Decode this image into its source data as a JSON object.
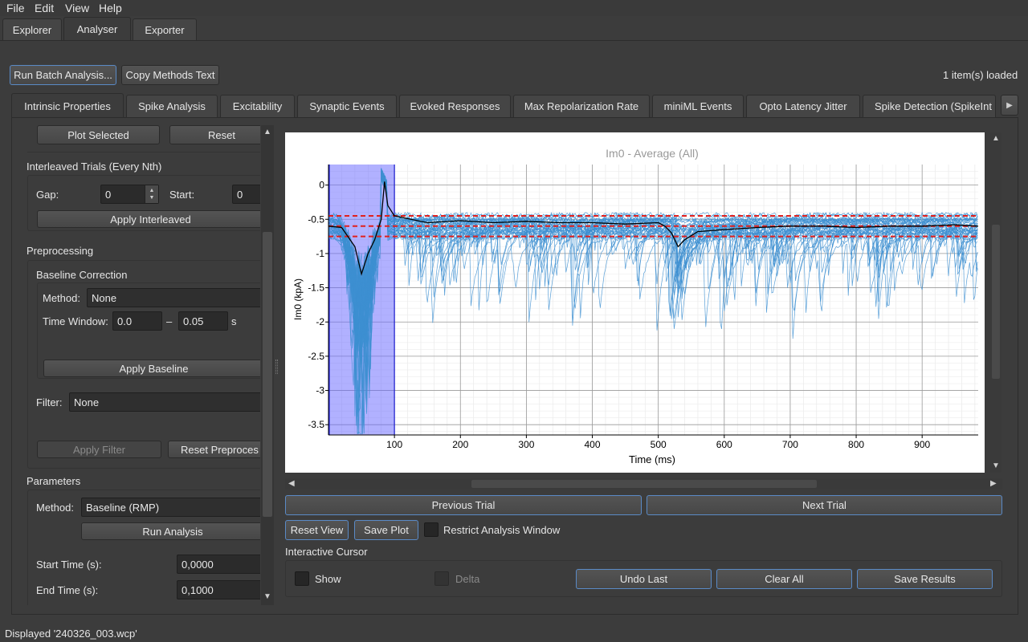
{
  "menu": {
    "items": [
      {
        "label": "File"
      },
      {
        "label": "Edit"
      },
      {
        "label": "View"
      },
      {
        "label": "Help"
      }
    ]
  },
  "top_tabs": [
    {
      "label": "Explorer",
      "active": false
    },
    {
      "label": "Analyser",
      "active": true
    },
    {
      "label": "Exporter",
      "active": false
    }
  ],
  "toolbar": {
    "run_batch_label": "Run Batch Analysis...",
    "copy_methods_label": "Copy Methods Text",
    "items_loaded": "1 item(s) loaded"
  },
  "analysis_tabs": [
    {
      "label": "Intrinsic Properties",
      "active": true
    },
    {
      "label": "Spike Analysis"
    },
    {
      "label": "Excitability"
    },
    {
      "label": "Synaptic Events"
    },
    {
      "label": "Evoked Responses"
    },
    {
      "label": "Max Repolarization Rate"
    },
    {
      "label": "miniML Events"
    },
    {
      "label": "Opto Latency Jitter"
    },
    {
      "label": "Spike Detection (SpikeInt"
    }
  ],
  "left_panel": {
    "plot_selected_label": "Plot Selected",
    "reset_label": "Reset",
    "interleaved_title": "Interleaved Trials (Every Nth)",
    "gap_label": "Gap:",
    "gap_value": "0",
    "start_label": "Start:",
    "start_value": "0",
    "apply_interleaved_label": "Apply Interleaved",
    "preprocessing_title": "Preprocessing",
    "baseline_title": "Baseline Correction",
    "method_label": "Method:",
    "method_value": "None",
    "time_window_label": "Time Window:",
    "tw_start": "0.0",
    "tw_dash": "–",
    "tw_end": "0.05",
    "tw_unit": "s",
    "apply_baseline_label": "Apply Baseline",
    "filter_label": "Filter:",
    "filter_value": "None",
    "apply_filter_label": "Apply Filter",
    "reset_preproc_label": "Reset Preproces",
    "parameters_title": "Parameters",
    "param_method_label": "Method:",
    "param_method_value": "Baseline (RMP)",
    "run_analysis_label": "Run Analysis",
    "start_time_label": "Start Time (s):",
    "start_time_value": "0,0000",
    "end_time_label": "End Time (s):",
    "end_time_value": "0,1000"
  },
  "plot_controls": {
    "prev_trial_label": "Previous Trial",
    "next_trial_label": "Next Trial",
    "reset_view_label": "Reset View",
    "save_plot_label": "Save Plot",
    "restrict_window_label": "Restrict Analysis Window",
    "cursor_title": "Interactive Cursor",
    "show_label": "Show",
    "delta_label": "Delta",
    "undo_last_label": "Undo Last",
    "clear_all_label": "Clear All",
    "save_results_label": "Save Results"
  },
  "status": {
    "text": "Displayed '240326_003.wcp'"
  },
  "colors": {
    "trace": "#3d8fd1",
    "average": "#000000",
    "threshold": "#e0201e",
    "region": "#6464ff"
  },
  "chart_data": {
    "type": "line",
    "title": "Im0 - Average (All)",
    "xlabel": "Time (ms)",
    "ylabel": "Im0 (kpA)",
    "xlim": [
      0,
      985
    ],
    "ylim": [
      -3.65,
      0.3
    ],
    "x_ticks": [
      100,
      200,
      300,
      400,
      500,
      600,
      700,
      800,
      900
    ],
    "y_ticks": [
      0,
      -0.5,
      -1,
      -1.5,
      -2,
      -2.5,
      -3,
      -3.5
    ],
    "y_tick_labels": [
      "0",
      "-0.5",
      "-1",
      "-1.5",
      "-2",
      "-2.5",
      "-3",
      "-3.5"
    ],
    "grid": true,
    "selected_region": [
      0,
      100
    ],
    "threshold_lines": [
      -0.45,
      -0.6,
      -0.75
    ],
    "average_series": {
      "name": "Average",
      "x": [
        0,
        20,
        40,
        50,
        60,
        70,
        80,
        85,
        90,
        100,
        150,
        200,
        250,
        300,
        350,
        400,
        450,
        500,
        510,
        520,
        530,
        540,
        560,
        600,
        650,
        700,
        750,
        800,
        850,
        900,
        950,
        985
      ],
      "y": [
        -0.6,
        -0.62,
        -0.9,
        -1.3,
        -1.0,
        -0.8,
        -0.5,
        0.05,
        -0.3,
        -0.45,
        -0.55,
        -0.52,
        -0.55,
        -0.53,
        -0.55,
        -0.55,
        -0.57,
        -0.55,
        -0.6,
        -0.7,
        -0.9,
        -0.8,
        -0.68,
        -0.65,
        -0.62,
        -0.6,
        -0.6,
        -0.62,
        -0.6,
        -0.6,
        -0.58,
        -0.6
      ]
    },
    "traces_count": 40
  }
}
